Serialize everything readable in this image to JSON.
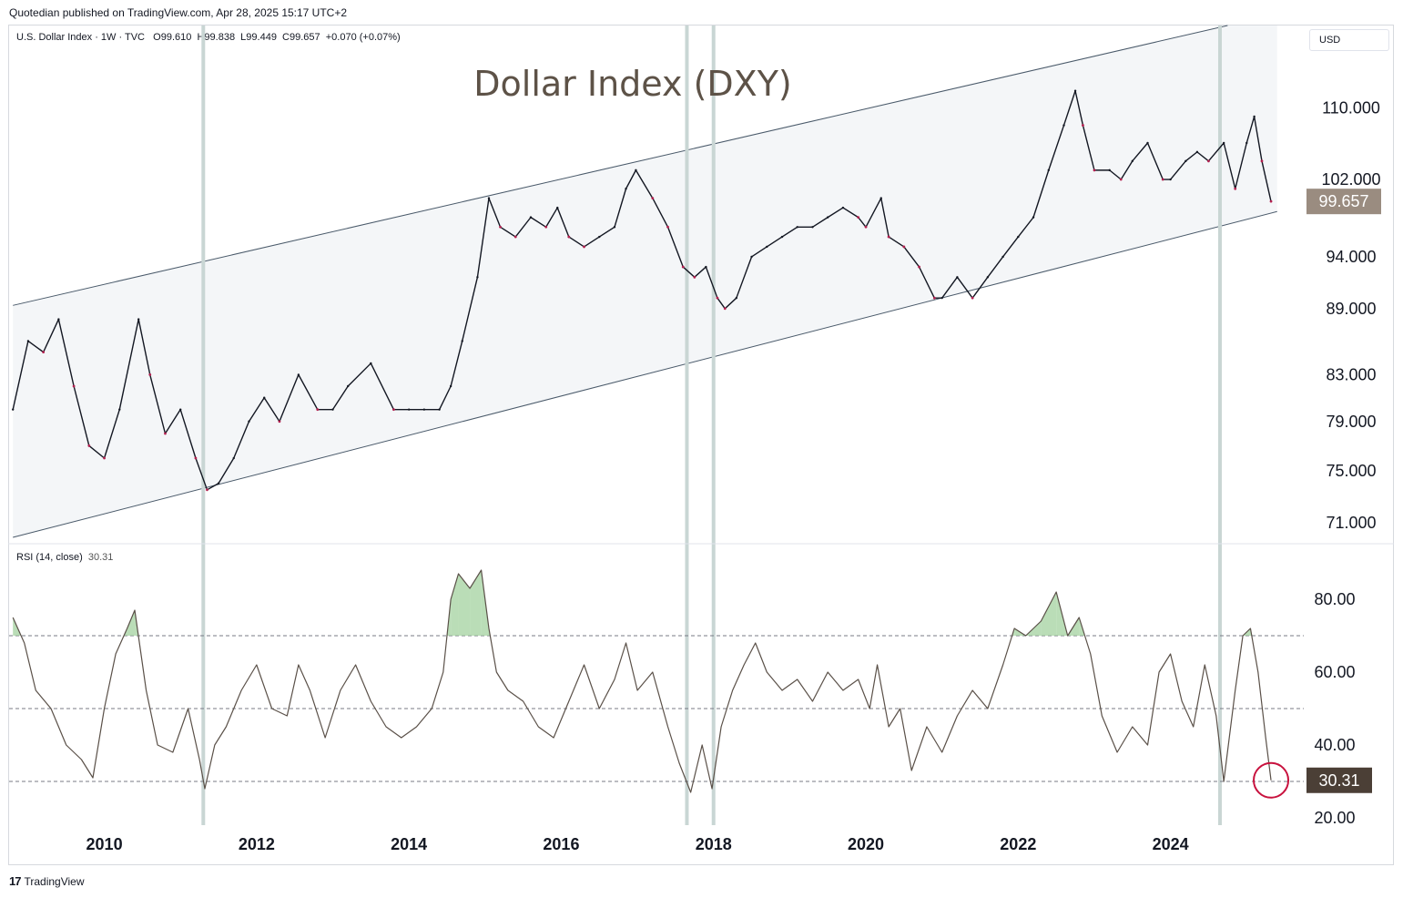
{
  "header": {
    "publisher_text": "Quotedian published on TradingView.com, Apr 28, 2025 15:17 UTC+2",
    "symbol_line": "U.S. Dollar Index · 1W · TVC   O99.610  H99.838  L99.449  C99.657  +0.070 (+0.07%)",
    "currency": "USD"
  },
  "rsi_header": {
    "label": "RSI (14, close)",
    "value": "30.31"
  },
  "footer": {
    "logo_mark": "17",
    "logo_text": "TradingView"
  },
  "colors": {
    "price_line": "#131722",
    "bar_down": "#b2204f",
    "channel_fill": "#f4f6f8",
    "channel_line": "#4a5a6a",
    "vertical_marker": "#c9d6d4",
    "rsi_line": "#5a5048",
    "overbought_fill": "#9ccf98",
    "last_price_tag": "#9a8c80",
    "rsi_tag": "#4b3f36",
    "circle": "#c8123e"
  },
  "chart_data": [
    {
      "type": "line",
      "title": "Dollar Index (DXY)",
      "series_name": "U.S. Dollar Index",
      "last_value": "99.657",
      "y_scale": "log",
      "ylim": [
        69.5,
        120
      ],
      "y_ticks": [
        "110.000",
        "102.000",
        "94.000",
        "89.000",
        "83.000",
        "79.000",
        "75.000",
        "71.000"
      ],
      "y_tick_values": [
        110,
        102,
        94,
        89,
        83,
        79,
        75,
        71
      ],
      "xlim": [
        2008.75,
        2025.75
      ],
      "x_ticks": [
        "2010",
        "2012",
        "2014",
        "2016",
        "2018",
        "2020",
        "2022",
        "2024"
      ],
      "x_tick_values": [
        2010,
        2012,
        2014,
        2016,
        2018,
        2020,
        2022,
        2024
      ],
      "x": [
        2008.8,
        2009.0,
        2009.2,
        2009.4,
        2009.6,
        2009.8,
        2010.0,
        2010.2,
        2010.45,
        2010.6,
        2010.8,
        2011.0,
        2011.2,
        2011.35,
        2011.5,
        2011.7,
        2011.9,
        2012.1,
        2012.3,
        2012.55,
        2012.8,
        2013.0,
        2013.2,
        2013.5,
        2013.8,
        2014.0,
        2014.2,
        2014.4,
        2014.55,
        2014.7,
        2014.9,
        2015.05,
        2015.2,
        2015.4,
        2015.6,
        2015.8,
        2015.95,
        2016.1,
        2016.3,
        2016.5,
        2016.7,
        2016.85,
        2016.98,
        2017.2,
        2017.4,
        2017.6,
        2017.75,
        2017.9,
        2018.05,
        2018.15,
        2018.3,
        2018.5,
        2018.7,
        2018.9,
        2019.1,
        2019.3,
        2019.5,
        2019.7,
        2019.9,
        2020.0,
        2020.2,
        2020.3,
        2020.5,
        2020.7,
        2020.9,
        2021.0,
        2021.2,
        2021.4,
        2021.6,
        2021.8,
        2022.0,
        2022.2,
        2022.4,
        2022.6,
        2022.75,
        2022.85,
        2023.0,
        2023.2,
        2023.35,
        2023.5,
        2023.7,
        2023.9,
        2024.0,
        2024.2,
        2024.35,
        2024.5,
        2024.7,
        2024.85,
        2025.0,
        2025.1,
        2025.2,
        2025.32
      ],
      "values": [
        80,
        86,
        85,
        88,
        82,
        77,
        76,
        80,
        88,
        83,
        78,
        80,
        76,
        73.5,
        74,
        76,
        79,
        81,
        79,
        83,
        80,
        80,
        82,
        84,
        80,
        80,
        80,
        80,
        82,
        86,
        92,
        100,
        97,
        96,
        98,
        97,
        99,
        96,
        95,
        96,
        97,
        101,
        103,
        100,
        97,
        93,
        92,
        93,
        90,
        89,
        90,
        94,
        95,
        96,
        97,
        97,
        98,
        99,
        98,
        97,
        100,
        96,
        95,
        93,
        90,
        90,
        92,
        90,
        92,
        94,
        96,
        98,
        103,
        108,
        112,
        108,
        103,
        103,
        102,
        104,
        106,
        102,
        102,
        104,
        105,
        104,
        106,
        101,
        106,
        109,
        104,
        99.657
      ],
      "channel": {
        "upper": [
          [
            2008.8,
            89.3
          ],
          [
            2024.75,
            120.0
          ]
        ],
        "lower": [
          [
            2008.8,
            69.9
          ],
          [
            2025.4,
            98.6
          ]
        ]
      },
      "vertical_markers": [
        2011.3,
        2017.65,
        2018.0,
        2024.65
      ]
    },
    {
      "type": "line",
      "series_name": "RSI (14, close)",
      "last_value": "30.31",
      "ylim": [
        18,
        95
      ],
      "y_ticks": [
        "80.00",
        "60.00",
        "40.00",
        "20.00"
      ],
      "y_tick_values": [
        80,
        60,
        40,
        20
      ],
      "levels": [
        70,
        50,
        30
      ],
      "x": [
        2008.8,
        2008.95,
        2009.1,
        2009.3,
        2009.5,
        2009.7,
        2009.85,
        2010.0,
        2010.15,
        2010.3,
        2010.4,
        2010.55,
        2010.7,
        2010.9,
        2011.1,
        2011.25,
        2011.32,
        2011.45,
        2011.6,
        2011.8,
        2012.0,
        2012.2,
        2012.4,
        2012.55,
        2012.7,
        2012.9,
        2013.1,
        2013.3,
        2013.5,
        2013.7,
        2013.9,
        2014.1,
        2014.3,
        2014.45,
        2014.55,
        2014.65,
        2014.8,
        2014.95,
        2015.05,
        2015.15,
        2015.3,
        2015.5,
        2015.7,
        2015.9,
        2016.1,
        2016.3,
        2016.5,
        2016.7,
        2016.85,
        2017.0,
        2017.2,
        2017.4,
        2017.55,
        2017.7,
        2017.85,
        2017.98,
        2018.1,
        2018.25,
        2018.4,
        2018.55,
        2018.7,
        2018.9,
        2019.1,
        2019.3,
        2019.5,
        2019.7,
        2019.9,
        2020.05,
        2020.15,
        2020.3,
        2020.45,
        2020.6,
        2020.8,
        2021.0,
        2021.2,
        2021.4,
        2021.6,
        2021.8,
        2021.95,
        2022.1,
        2022.3,
        2022.5,
        2022.65,
        2022.8,
        2022.95,
        2023.1,
        2023.3,
        2023.5,
        2023.7,
        2023.85,
        2024.0,
        2024.15,
        2024.3,
        2024.45,
        2024.6,
        2024.7,
        2024.85,
        2024.95,
        2025.05,
        2025.15,
        2025.25,
        2025.32
      ],
      "values": [
        75,
        68,
        55,
        50,
        40,
        36,
        31,
        50,
        65,
        72,
        77,
        55,
        40,
        38,
        50,
        36,
        28,
        40,
        45,
        55,
        62,
        50,
        48,
        62,
        55,
        42,
        55,
        62,
        52,
        45,
        42,
        45,
        50,
        60,
        80,
        87,
        83,
        88,
        72,
        60,
        55,
        52,
        45,
        42,
        52,
        62,
        50,
        58,
        68,
        55,
        60,
        45,
        35,
        27,
        40,
        28,
        45,
        55,
        62,
        68,
        60,
        55,
        58,
        52,
        60,
        55,
        58,
        50,
        62,
        45,
        50,
        33,
        45,
        38,
        48,
        55,
        50,
        62,
        72,
        70,
        74,
        82,
        70,
        75,
        65,
        48,
        38,
        45,
        40,
        60,
        65,
        52,
        45,
        62,
        48,
        30,
        55,
        70,
        72,
        60,
        42,
        30.31
      ]
    }
  ]
}
